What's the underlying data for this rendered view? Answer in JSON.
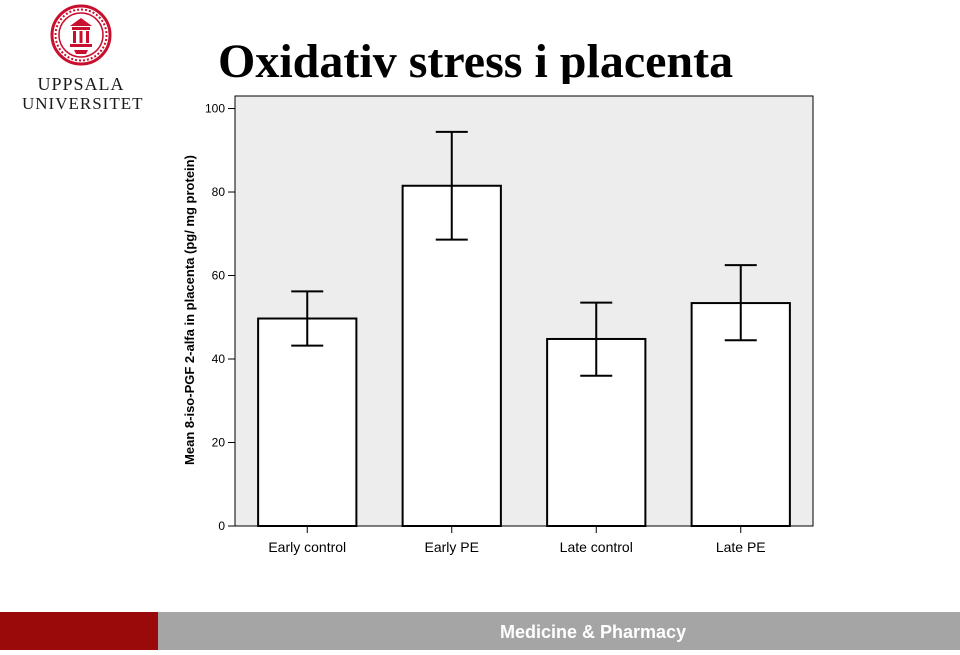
{
  "logo": {
    "line1": "UPPSALA",
    "line2": "UNIVERSITET",
    "seal_color": "#c8102e"
  },
  "slide": {
    "title": "Oxidativ stress i placenta"
  },
  "footer": {
    "text": "Medicine & Pharmacy",
    "accent_color": "#9b0a0a",
    "bar_color": "#a5a5a5"
  },
  "chart_data": {
    "type": "bar",
    "title": "",
    "xlabel": "",
    "ylabel": "Mean 8-iso-PGF 2-alfa in placenta (pg/ mg protein)",
    "categories": [
      "Early control",
      "Early PE",
      "Late control",
      "Late PE"
    ],
    "values": [
      49.7,
      81.5,
      44.8,
      53.4
    ],
    "error_low": [
      43.2,
      68.6,
      36.0,
      44.5
    ],
    "error_high": [
      56.2,
      94.4,
      53.5,
      62.5
    ],
    "ylim": [
      0,
      103
    ],
    "yticks": [
      0,
      20,
      40,
      60,
      80,
      100
    ],
    "grid": false,
    "plot_background": "#ededed",
    "bar_fill": "#ffffff",
    "bar_stroke": "#000000"
  }
}
